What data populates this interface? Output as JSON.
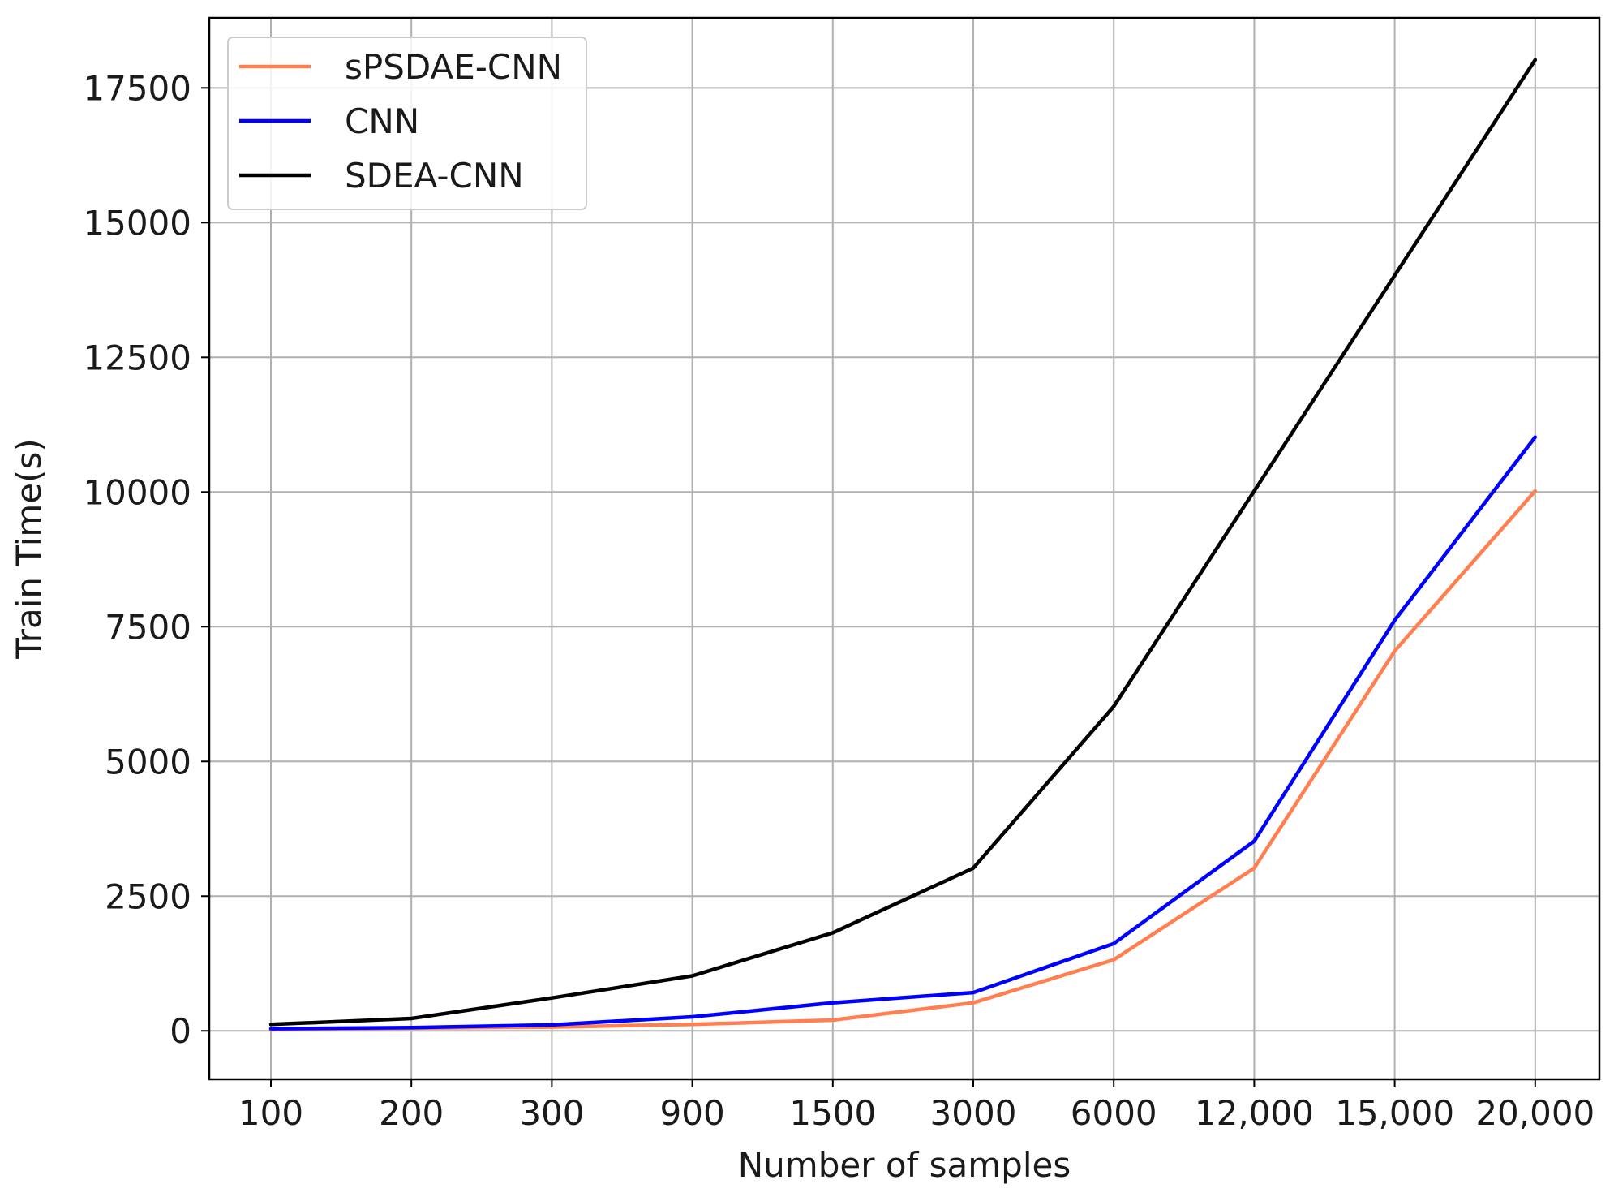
{
  "chart_data": {
    "type": "line",
    "xlabel": "Number of samples",
    "ylabel": "Train Time(s)",
    "categories": [
      "100",
      "200",
      "300",
      "900",
      "1500",
      "3000",
      "6000",
      "12,000",
      "15,000",
      "20,000"
    ],
    "yticks": [
      0,
      2500,
      5000,
      7500,
      10000,
      12500,
      15000,
      17500
    ],
    "ylim": [
      -900,
      18800
    ],
    "grid": true,
    "legend_position": "top-left",
    "series": [
      {
        "name": "sPSDAE-CNN",
        "color": "#ff7f50",
        "values": [
          30,
          50,
          70,
          120,
          200,
          520,
          1320,
          3020,
          7050,
          10020
        ]
      },
      {
        "name": "CNN",
        "color": "#0000ff",
        "values": [
          40,
          60,
          110,
          260,
          520,
          710,
          1620,
          3520,
          7620,
          11020
        ]
      },
      {
        "name": "SDEA-CNN",
        "color": "#000000",
        "values": [
          120,
          230,
          610,
          1020,
          1820,
          3020,
          6020,
          10020,
          14020,
          18020
        ]
      }
    ]
  }
}
